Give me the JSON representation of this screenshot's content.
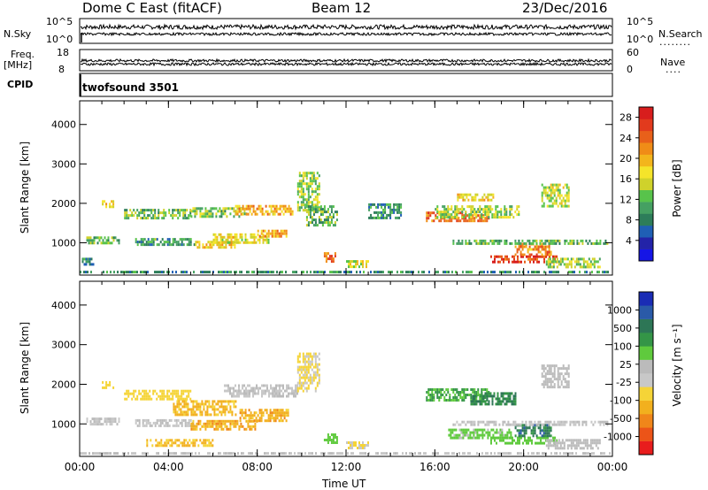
{
  "header": {
    "station": "Dome C East (fitACF)",
    "beam": "Beam 12",
    "date": "23/Dec/2016"
  },
  "params": {
    "nsky_label": "N.Sky",
    "nsky_ticks": [
      "10^5",
      "10^0"
    ],
    "nsearch_label": "N.Search",
    "nsearch_ticks": [
      "10^5",
      "10^0"
    ],
    "freq_label": "Freq.",
    "freq_unit": "[MHz]",
    "freq_ticks": [
      "18",
      "8"
    ],
    "nave_label": "Nave",
    "nave_ticks": [
      "60",
      "0"
    ],
    "cpid_label": "CPID",
    "cpid_value": "twofsound 3501"
  },
  "chart_data": [
    {
      "type": "heatmap",
      "name": "power",
      "ylabel": "Slant Range [km]",
      "xlabel": "Time UT",
      "xlim": [
        0,
        24
      ],
      "ylim": [
        180,
        4600
      ],
      "x_ticks": [
        "00:00",
        "04:00",
        "08:00",
        "12:00",
        "16:00",
        "20:00",
        "00:00"
      ],
      "y_ticks": [
        "1000",
        "2000",
        "3000",
        "4000"
      ],
      "colorbar": {
        "label": "Power [dB]",
        "ticks": [
          "28",
          "24",
          "20",
          "16",
          "12",
          "8",
          "4"
        ],
        "range": [
          0,
          30
        ],
        "colors": [
          "#1515e6",
          "#2323a8",
          "#1f5fb5",
          "#2d7d5a",
          "#45a062",
          "#58c34b",
          "#cfd22b",
          "#f5e42a",
          "#f3b51c",
          "#f08c17",
          "#e8601a",
          "#e23a1d",
          "#d81d1d"
        ]
      },
      "regions": [
        {
          "t": [
            0.0,
            23.9
          ],
          "r": [
            230,
            290
          ],
          "v": 9
        },
        {
          "t": [
            0.3,
            1.8
          ],
          "r": [
            960,
            1160
          ],
          "v": 12
        },
        {
          "t": [
            0.1,
            0.6
          ],
          "r": [
            460,
            620
          ],
          "v": 9
        },
        {
          "t": [
            1.0,
            1.5
          ],
          "r": [
            1880,
            2080
          ],
          "v": 18
        },
        {
          "t": [
            2.0,
            5.0
          ],
          "r": [
            1620,
            1860
          ],
          "v": 12
        },
        {
          "t": [
            2.5,
            5.2
          ],
          "r": [
            960,
            1120
          ],
          "v": 10
        },
        {
          "t": [
            5.0,
            7.5
          ],
          "r": [
            1650,
            1900
          ],
          "v": 13
        },
        {
          "t": [
            5.2,
            7.0
          ],
          "r": [
            850,
            1050
          ],
          "v": 18
        },
        {
          "t": [
            7.0,
            9.6
          ],
          "r": [
            1700,
            1960
          ],
          "v": 20
        },
        {
          "t": [
            6.0,
            8.5
          ],
          "r": [
            1000,
            1240
          ],
          "v": 17
        },
        {
          "t": [
            8.0,
            9.3
          ],
          "r": [
            1140,
            1330
          ],
          "v": 21
        },
        {
          "t": [
            9.8,
            10.8
          ],
          "r": [
            1800,
            2800
          ],
          "v": 14
        },
        {
          "t": [
            10.2,
            11.6
          ],
          "r": [
            1450,
            1950
          ],
          "v": 11
        },
        {
          "t": [
            11.0,
            11.6
          ],
          "r": [
            520,
            760
          ],
          "v": 24
        },
        {
          "t": [
            12.0,
            13.0
          ],
          "r": [
            400,
            560
          ],
          "v": 16
        },
        {
          "t": [
            15.6,
            18.4
          ],
          "r": [
            1580,
            1790
          ],
          "v": 24
        },
        {
          "t": [
            16.0,
            19.8
          ],
          "r": [
            1650,
            1950
          ],
          "v": 14
        },
        {
          "t": [
            17.0,
            18.6
          ],
          "r": [
            2050,
            2250
          ],
          "v": 18
        },
        {
          "t": [
            18.5,
            21.5
          ],
          "r": [
            480,
            680
          ],
          "v": 26
        },
        {
          "t": [
            21.0,
            23.4
          ],
          "r": [
            400,
            620
          ],
          "v": 14
        },
        {
          "t": [
            19.6,
            21.2
          ],
          "r": [
            680,
            1000
          ],
          "v": 22
        },
        {
          "t": [
            16.8,
            23.8
          ],
          "r": [
            980,
            1080
          ],
          "v": 11
        },
        {
          "t": [
            13.0,
            14.5
          ],
          "r": [
            1650,
            2000
          ],
          "v": 9
        },
        {
          "t": [
            20.8,
            22.0
          ],
          "r": [
            1900,
            2500
          ],
          "v": 15
        }
      ]
    },
    {
      "type": "heatmap",
      "name": "velocity",
      "ylabel": "Slant Range [km]",
      "xlabel": "Time UT",
      "xlim": [
        0,
        24
      ],
      "ylim": [
        180,
        4600
      ],
      "x_ticks": [
        "00:00",
        "04:00",
        "08:00",
        "12:00",
        "16:00",
        "20:00",
        "00:00"
      ],
      "y_ticks": [
        "1000",
        "2000",
        "3000",
        "4000"
      ],
      "colorbar": {
        "label": "Velocity [m s⁻¹]",
        "ticks": [
          "1000",
          "500",
          "100",
          "25",
          "-25",
          "-100",
          "-500",
          "-1000"
        ],
        "range": [
          -1200,
          1200
        ],
        "colors": [
          "#e81d1d",
          "#ec5418",
          "#f0861a",
          "#f2b01e",
          "#f5d437",
          "#c8c8c8",
          "#bbbbbb",
          "#5fca3d",
          "#349547",
          "#2d7656",
          "#2a5aa8",
          "#1a2cb5"
        ]
      },
      "regions": [
        {
          "t": [
            0.0,
            23.9
          ],
          "r": [
            230,
            290
          ],
          "v": -20
        },
        {
          "t": [
            0.3,
            1.8
          ],
          "r": [
            960,
            1160
          ],
          "v": -5
        },
        {
          "t": [
            1.0,
            1.5
          ],
          "r": [
            1880,
            2080
          ],
          "v": -300
        },
        {
          "t": [
            2.0,
            5.0
          ],
          "r": [
            1620,
            1860
          ],
          "v": -300
        },
        {
          "t": [
            2.5,
            5.2
          ],
          "r": [
            960,
            1120
          ],
          "v": -5
        },
        {
          "t": [
            4.2,
            7.0
          ],
          "r": [
            1250,
            1600
          ],
          "v": -450
        },
        {
          "t": [
            5.0,
            8.0
          ],
          "r": [
            850,
            1100
          ],
          "v": -500
        },
        {
          "t": [
            6.5,
            9.8
          ],
          "r": [
            1700,
            2000
          ],
          "v": 0
        },
        {
          "t": [
            7.2,
            9.4
          ],
          "r": [
            1050,
            1380
          ],
          "v": -500
        },
        {
          "t": [
            3.0,
            6.0
          ],
          "r": [
            460,
            620
          ],
          "v": -400
        },
        {
          "t": [
            9.8,
            10.8
          ],
          "r": [
            1800,
            2800
          ],
          "v": -200
        },
        {
          "t": [
            11.0,
            11.6
          ],
          "r": [
            520,
            760
          ],
          "v": 300
        },
        {
          "t": [
            12.0,
            13.0
          ],
          "r": [
            400,
            560
          ],
          "v": -200
        },
        {
          "t": [
            15.6,
            18.4
          ],
          "r": [
            1580,
            1900
          ],
          "v": 400
        },
        {
          "t": [
            17.6,
            19.6
          ],
          "r": [
            1500,
            1800
          ],
          "v": 600
        },
        {
          "t": [
            16.6,
            19.4
          ],
          "r": [
            620,
            880
          ],
          "v": 250
        },
        {
          "t": [
            18.5,
            21.5
          ],
          "r": [
            480,
            680
          ],
          "v": 300
        },
        {
          "t": [
            19.6,
            21.2
          ],
          "r": [
            680,
            1000
          ],
          "v": 700
        },
        {
          "t": [
            21.0,
            23.4
          ],
          "r": [
            400,
            620
          ],
          "v": 60
        },
        {
          "t": [
            16.8,
            23.8
          ],
          "r": [
            980,
            1080
          ],
          "v": 0
        },
        {
          "t": [
            20.8,
            22.0
          ],
          "r": [
            1900,
            2500
          ],
          "v": 100
        }
      ]
    }
  ]
}
